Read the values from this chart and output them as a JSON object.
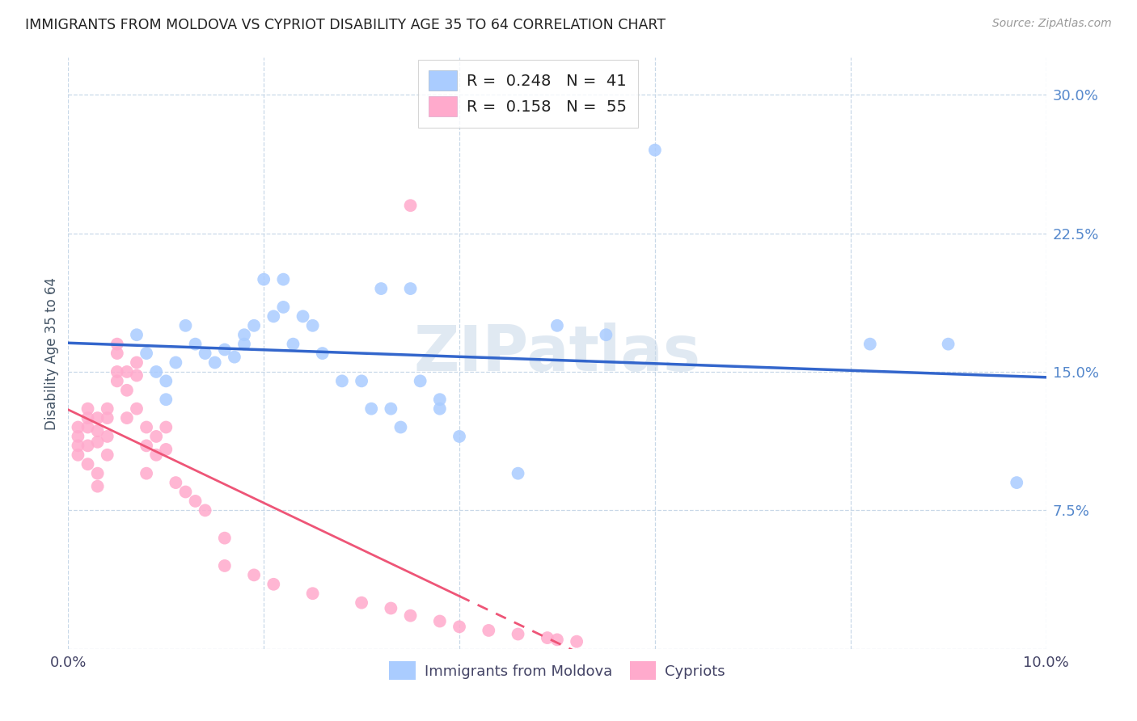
{
  "title": "IMMIGRANTS FROM MOLDOVA VS CYPRIOT DISABILITY AGE 35 TO 64 CORRELATION CHART",
  "source": "Source: ZipAtlas.com",
  "ylabel": "Disability Age 35 to 64",
  "xlim": [
    0.0,
    0.1
  ],
  "ylim": [
    0.0,
    0.32
  ],
  "xticks": [
    0.0,
    0.02,
    0.04,
    0.06,
    0.08,
    0.1
  ],
  "yticks": [
    0.0,
    0.075,
    0.15,
    0.225,
    0.3
  ],
  "xticklabels_show": [
    "0.0%",
    "10.0%"
  ],
  "yticklabels": [
    "",
    "7.5%",
    "15.0%",
    "22.5%",
    "30.0%"
  ],
  "legend1_label": "Immigrants from Moldova",
  "legend2_label": "Cypriots",
  "R1": "0.248",
  "N1": "41",
  "R2": "0.158",
  "N2": "55",
  "blue_color": "#aaccff",
  "pink_color": "#ffaacc",
  "line_blue": "#3366cc",
  "line_pink": "#ee5577",
  "background": "#ffffff",
  "grid_color": "#c8d8e8",
  "watermark": "ZIPatlas",
  "blue_points_x": [
    0.007,
    0.008,
    0.009,
    0.01,
    0.01,
    0.011,
    0.012,
    0.013,
    0.014,
    0.015,
    0.016,
    0.017,
    0.018,
    0.018,
    0.019,
    0.02,
    0.021,
    0.022,
    0.022,
    0.023,
    0.024,
    0.025,
    0.026,
    0.028,
    0.03,
    0.031,
    0.033,
    0.034,
    0.036,
    0.038,
    0.04,
    0.032,
    0.035,
    0.046,
    0.05,
    0.055,
    0.06,
    0.082,
    0.09,
    0.097,
    0.038
  ],
  "blue_points_y": [
    0.17,
    0.16,
    0.15,
    0.145,
    0.135,
    0.155,
    0.175,
    0.165,
    0.16,
    0.155,
    0.162,
    0.158,
    0.17,
    0.165,
    0.175,
    0.2,
    0.18,
    0.2,
    0.185,
    0.165,
    0.18,
    0.175,
    0.16,
    0.145,
    0.145,
    0.13,
    0.13,
    0.12,
    0.145,
    0.135,
    0.115,
    0.195,
    0.195,
    0.095,
    0.175,
    0.17,
    0.27,
    0.165,
    0.165,
    0.09,
    0.13
  ],
  "pink_points_x": [
    0.001,
    0.001,
    0.001,
    0.001,
    0.002,
    0.002,
    0.002,
    0.002,
    0.002,
    0.003,
    0.003,
    0.003,
    0.003,
    0.003,
    0.004,
    0.004,
    0.004,
    0.004,
    0.005,
    0.005,
    0.005,
    0.005,
    0.006,
    0.006,
    0.006,
    0.007,
    0.007,
    0.007,
    0.008,
    0.008,
    0.008,
    0.009,
    0.009,
    0.01,
    0.01,
    0.011,
    0.012,
    0.013,
    0.014,
    0.016,
    0.016,
    0.019,
    0.021,
    0.025,
    0.03,
    0.033,
    0.035,
    0.038,
    0.04,
    0.043,
    0.046,
    0.049,
    0.05,
    0.052,
    0.035
  ],
  "pink_points_y": [
    0.12,
    0.115,
    0.11,
    0.105,
    0.13,
    0.125,
    0.12,
    0.11,
    0.1,
    0.125,
    0.118,
    0.112,
    0.095,
    0.088,
    0.13,
    0.125,
    0.115,
    0.105,
    0.165,
    0.16,
    0.15,
    0.145,
    0.15,
    0.14,
    0.125,
    0.155,
    0.148,
    0.13,
    0.12,
    0.11,
    0.095,
    0.115,
    0.105,
    0.12,
    0.108,
    0.09,
    0.085,
    0.08,
    0.075,
    0.06,
    0.045,
    0.04,
    0.035,
    0.03,
    0.025,
    0.022,
    0.018,
    0.015,
    0.012,
    0.01,
    0.008,
    0.006,
    0.005,
    0.004,
    0.24
  ]
}
